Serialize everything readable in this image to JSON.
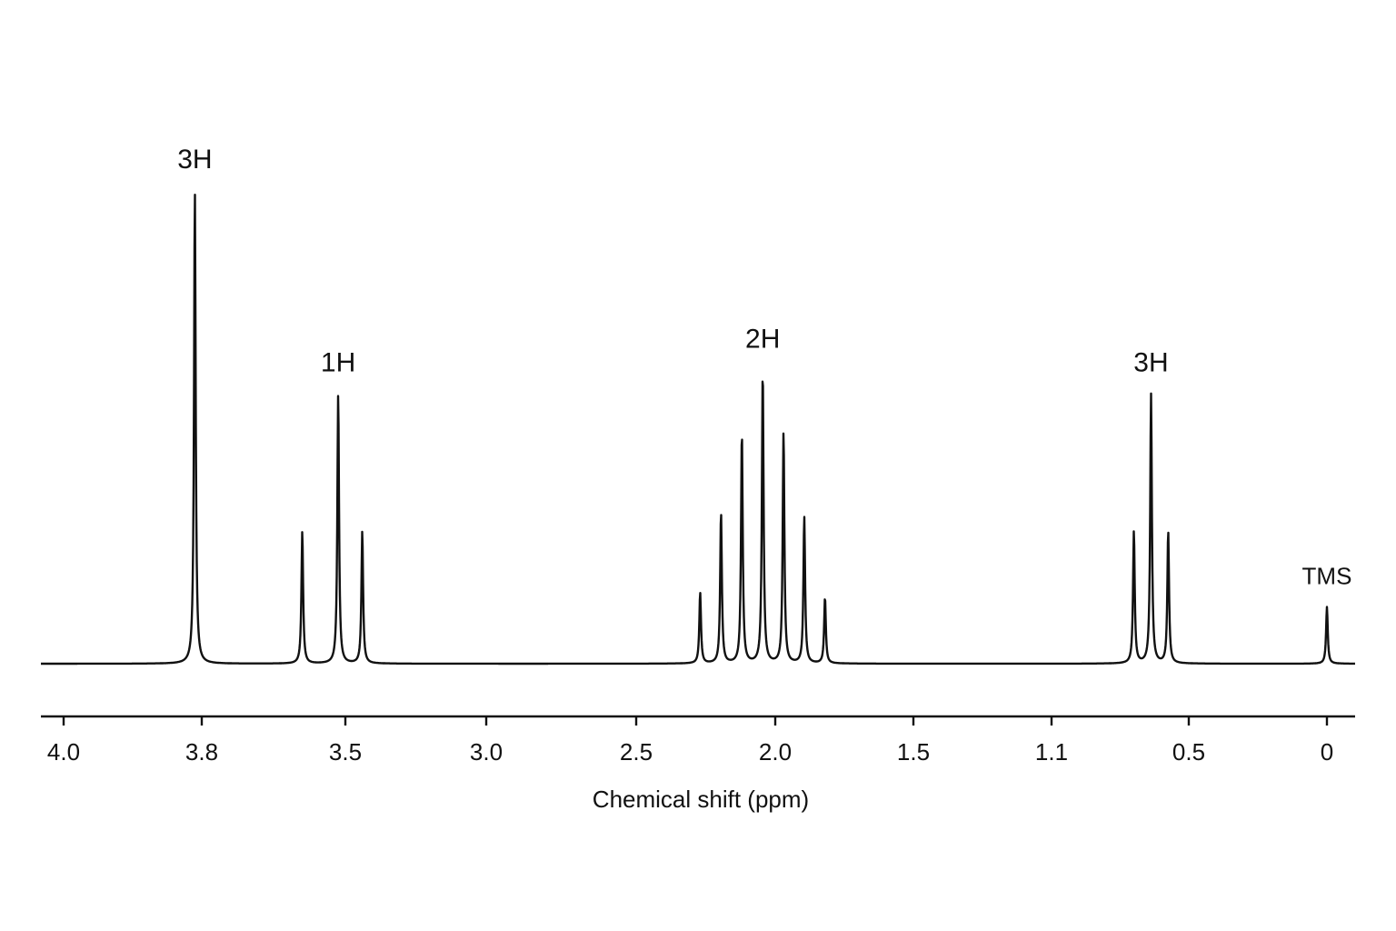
{
  "chart_data": {
    "type": "line",
    "title": "",
    "xlabel": "Chemical shift (ppm)",
    "ylabel": "",
    "x_reversed": true,
    "xlim": [
      4.1,
      -0.1
    ],
    "grid": false,
    "legend": "none",
    "tick_labels": [
      {
        "label": "4.0",
        "value": 4.0
      },
      {
        "label": "3.8",
        "value": 3.8
      },
      {
        "label": "3.5",
        "value": 3.5
      },
      {
        "label": "3.0",
        "value": 3.0
      },
      {
        "label": "2.5",
        "value": 2.5
      },
      {
        "label": "2.0",
        "value": 2.0
      },
      {
        "label": "1.5",
        "value": 1.5
      },
      {
        "label": "1.1",
        "value": 1.1
      },
      {
        "label": "0.5",
        "value": 0.5
      },
      {
        "label": "0",
        "value": 0.0
      }
    ],
    "peaks": [
      {
        "shift": 3.81,
        "intensity": 1.0
      },
      {
        "shift": 3.59,
        "intensity": 0.28
      },
      {
        "shift": 3.515,
        "intensity": 0.57
      },
      {
        "shift": 3.44,
        "intensity": 0.28
      },
      {
        "shift": 2.27,
        "intensity": 0.15
      },
      {
        "shift": 2.195,
        "intensity": 0.32
      },
      {
        "shift": 2.12,
        "intensity": 0.49
      },
      {
        "shift": 2.045,
        "intensity": 0.62
      },
      {
        "shift": 1.97,
        "intensity": 0.49
      },
      {
        "shift": 1.895,
        "intensity": 0.31
      },
      {
        "shift": 1.82,
        "intensity": 0.14
      },
      {
        "shift": 0.74,
        "intensity": 0.28
      },
      {
        "shift": 0.665,
        "intensity": 0.57
      },
      {
        "shift": 0.59,
        "intensity": 0.28
      },
      {
        "shift": 0.0,
        "intensity": 0.12
      }
    ],
    "annotations": [
      {
        "text": "3H",
        "shift": 3.81,
        "type": "integration"
      },
      {
        "text": "1H",
        "shift": 3.515,
        "type": "integration"
      },
      {
        "text": "2H",
        "shift": 2.045,
        "type": "integration"
      },
      {
        "text": "3H",
        "shift": 0.665,
        "type": "integration"
      },
      {
        "text": "TMS",
        "shift": 0.0,
        "type": "reference"
      }
    ],
    "line_color": "#111111"
  }
}
